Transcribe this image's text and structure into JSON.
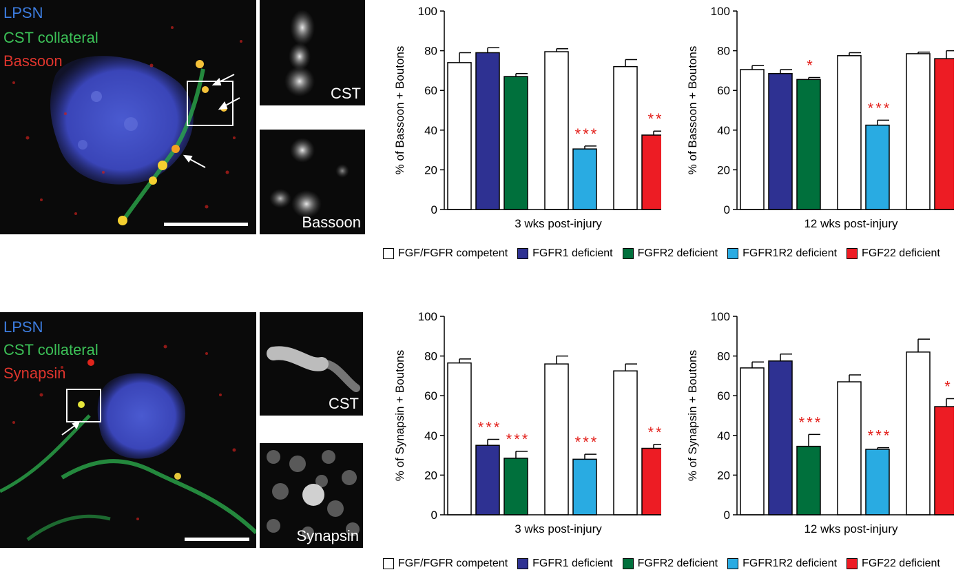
{
  "colors": {
    "competent": "#ffffff",
    "fgfr1": "#2e3192",
    "fgfr2": "#00703c",
    "fgfr1r2": "#29abe2",
    "fgf22": "#ed1c24",
    "star": "#e3201b"
  },
  "legend": [
    {
      "label": "FGF/FGFR competent",
      "color": "#ffffff"
    },
    {
      "label": "FGFR1 deficient",
      "color": "#2e3192"
    },
    {
      "label": "FGFR2 deficient",
      "color": "#00703c"
    },
    {
      "label": "FGFR1R2 deficient",
      "color": "#29abe2"
    },
    {
      "label": "FGF22 deficient",
      "color": "#ed1c24"
    }
  ],
  "panels": {
    "top": {
      "labels": [
        "LPSN",
        "CST collateral",
        "Bassoon"
      ],
      "insets": [
        "CST",
        "Bassoon"
      ]
    },
    "bottom": {
      "labels": [
        "LPSN",
        "CST collateral",
        "Synapsin"
      ],
      "insets": [
        "CST",
        "Synapsin"
      ]
    }
  },
  "chart_data": [
    {
      "type": "bar",
      "xlabel": "3 wks post-injury",
      "ylabel": "% of Bassoon + Boutons",
      "ylim": [
        0,
        100
      ],
      "yticks": [
        0,
        20,
        40,
        60,
        80,
        100
      ],
      "bars": [
        {
          "group": 1,
          "series": "FGF/FGFR competent",
          "value": 74,
          "err": 5,
          "sig": ""
        },
        {
          "group": 1,
          "series": "FGFR1 deficient",
          "value": 79,
          "err": 2.5,
          "sig": ""
        },
        {
          "group": 1,
          "series": "FGFR2 deficient",
          "value": 67,
          "err": 1.5,
          "sig": ""
        },
        {
          "group": 2,
          "series": "FGF/FGFR competent",
          "value": 79.5,
          "err": 1.5,
          "sig": ""
        },
        {
          "group": 2,
          "series": "FGFR1R2 deficient",
          "value": 30.5,
          "err": 1.5,
          "sig": "***"
        },
        {
          "group": 3,
          "series": "FGF/FGFR competent",
          "value": 72,
          "err": 3.5,
          "sig": ""
        },
        {
          "group": 3,
          "series": "FGF22 deficient",
          "value": 37.5,
          "err": 2,
          "sig": "**"
        }
      ]
    },
    {
      "type": "bar",
      "xlabel": "12 wks post-injury",
      "ylabel": "% of Bassoon + Boutons",
      "ylim": [
        0,
        100
      ],
      "yticks": [
        0,
        20,
        40,
        60,
        80,
        100
      ],
      "bars": [
        {
          "group": 1,
          "series": "FGF/FGFR competent",
          "value": 70.5,
          "err": 2,
          "sig": ""
        },
        {
          "group": 1,
          "series": "FGFR1 deficient",
          "value": 68.5,
          "err": 2,
          "sig": ""
        },
        {
          "group": 1,
          "series": "FGFR2 deficient",
          "value": 65.5,
          "err": 1,
          "sig": "*"
        },
        {
          "group": 2,
          "series": "FGF/FGFR competent",
          "value": 77.5,
          "err": 1.5,
          "sig": ""
        },
        {
          "group": 2,
          "series": "FGFR1R2 deficient",
          "value": 42.5,
          "err": 2.5,
          "sig": "***"
        },
        {
          "group": 3,
          "series": "FGF/FGFR competent",
          "value": 78.5,
          "err": 0.8,
          "sig": ""
        },
        {
          "group": 3,
          "series": "FGF22 deficient",
          "value": 76,
          "err": 4,
          "sig": ""
        }
      ]
    },
    {
      "type": "bar",
      "xlabel": "3 wks post-injury",
      "ylabel": "% of Synapsin + Boutons",
      "ylim": [
        0,
        100
      ],
      "yticks": [
        0,
        20,
        40,
        60,
        80,
        100
      ],
      "bars": [
        {
          "group": 1,
          "series": "FGF/FGFR competent",
          "value": 76.5,
          "err": 2,
          "sig": ""
        },
        {
          "group": 1,
          "series": "FGFR1 deficient",
          "value": 35,
          "err": 3,
          "sig": "***"
        },
        {
          "group": 1,
          "series": "FGFR2 deficient",
          "value": 28.5,
          "err": 3.5,
          "sig": "***"
        },
        {
          "group": 2,
          "series": "FGF/FGFR competent",
          "value": 76,
          "err": 4,
          "sig": ""
        },
        {
          "group": 2,
          "series": "FGFR1R2 deficient",
          "value": 28,
          "err": 2.5,
          "sig": "***"
        },
        {
          "group": 3,
          "series": "FGF/FGFR competent",
          "value": 72.5,
          "err": 3.5,
          "sig": ""
        },
        {
          "group": 3,
          "series": "FGF22 deficient",
          "value": 33.5,
          "err": 2,
          "sig": "**"
        }
      ]
    },
    {
      "type": "bar",
      "xlabel": "12 wks post-injury",
      "ylabel": "% of Synapsin + Boutons",
      "ylim": [
        0,
        100
      ],
      "yticks": [
        0,
        20,
        40,
        60,
        80,
        100
      ],
      "bars": [
        {
          "group": 1,
          "series": "FGF/FGFR competent",
          "value": 74,
          "err": 3,
          "sig": ""
        },
        {
          "group": 1,
          "series": "FGFR1 deficient",
          "value": 77.5,
          "err": 3.5,
          "sig": ""
        },
        {
          "group": 1,
          "series": "FGFR2 deficient",
          "value": 34.5,
          "err": 6,
          "sig": "***"
        },
        {
          "group": 2,
          "series": "FGF/FGFR competent",
          "value": 67,
          "err": 3.5,
          "sig": ""
        },
        {
          "group": 2,
          "series": "FGFR1R2 deficient",
          "value": 33,
          "err": 0.8,
          "sig": "***"
        },
        {
          "group": 3,
          "series": "FGF/FGFR competent",
          "value": 82,
          "err": 6.5,
          "sig": ""
        },
        {
          "group": 3,
          "series": "FGF22 deficient",
          "value": 54.5,
          "err": 4,
          "sig": "*"
        }
      ]
    }
  ]
}
